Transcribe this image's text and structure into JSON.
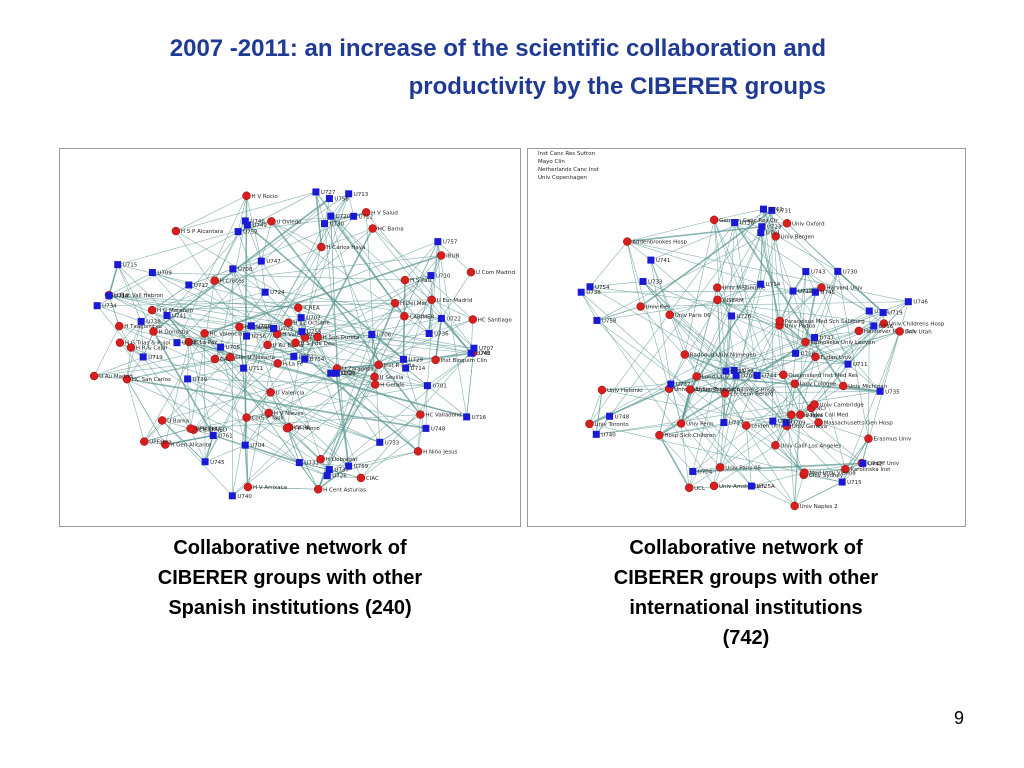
{
  "title": {
    "line1": "2007 -2011: an increase of the scientific collaboration and",
    "line2": "productivity by the  CIBERER groups"
  },
  "colors": {
    "title": "#1f3a93",
    "institution_node": "#d91e1e",
    "group_node": "#1a1ad6",
    "edge": "#5f9a94"
  },
  "networks": [
    {
      "caption": "Collaborative network of CIBERER groups with other Spanish institutions (240)",
      "caption_lines": [
        "Collaborative network of",
        "CIBERER groups with other",
        "Spanish institutions (240)"
      ],
      "institution_nodes": [
        "Inst R Sofia",
        "H J Canalejo",
        "U Sevilla",
        "H Txagorritxu",
        "CIBERNED",
        "HC Valladolid",
        "H La Fe",
        "H Gen Alicante",
        "CABIMER",
        "U Au Barna",
        "H Cruces",
        "CABD",
        "U Valencia",
        "H V Rocio",
        "H V Arrixaca",
        "ISC III",
        "H S Pau",
        "H Getafe",
        "Clin U Navarra",
        "U Oviedo",
        "H Vall Hebron",
        "UPFabra",
        "CSIC",
        "H La Paz",
        "H G Trias & Pujol",
        "HC Valencia",
        "H S J de Deu",
        "H V Nieves",
        "H Son Dureta",
        "CorS P Tauli",
        "H Del Mar",
        "H 12 Octubre",
        "H P Hierro",
        "HC Barna",
        "H Niño Jesus",
        "H R & Cajal",
        "HC Santiago",
        "ICREA",
        "H G Marañon",
        "H S P Alcantara",
        "HC San Carlos",
        "UPV EHU",
        "H Donostia",
        "U Barna",
        "H V Salud",
        "U Au Madrid",
        "H Mat Vall Hebron",
        "H Cent Asturias",
        "U Eur Madrid",
        "CNB",
        "IBUB",
        "U Zaragoza",
        "CIAC",
        "H Carlos Haya",
        "Inst Bioquim Clin",
        "H Llobregat",
        "U Com Madrid"
      ],
      "group_nodes": [
        "U738",
        "U747",
        "U736",
        "U707",
        "U732",
        "U754",
        "U704",
        "U702",
        "U755",
        "U712",
        "U733",
        "U745",
        "U734",
        "U729",
        "U728",
        "U722",
        "U741",
        "U719",
        "U709",
        "U725A",
        "U726",
        "U705",
        "U711",
        "U703",
        "U720",
        "U716",
        "U717",
        "U742",
        "U752",
        "U757",
        "U709",
        "U715",
        "U701",
        "U710",
        "U714",
        "U737",
        "U724",
        "U706",
        "U727",
        "U748",
        "U759",
        "U723",
        "U746",
        "U731",
        "U756",
        "U708",
        "U761",
        "U749",
        "U713",
        "U740",
        "U718",
        "U758",
        "U739",
        "U730"
      ]
    },
    {
      "caption": "Collaborative network of CIBERER groups with other international institutions (742)",
      "caption_lines": [
        "Collaborative network of",
        "CIBERER groups with other",
        "international institutions",
        "(742)"
      ],
      "legend_lines": [
        "Inst Canc Res Sutton",
        "Mayo Clin",
        "Netherlands Canc Inst",
        "Univ Copenhagen"
      ],
      "institution_nodes": [
        "Univ Kiel",
        "Cardiff Univ",
        "Univ Toronto",
        "Lund Univ",
        "Univ Naples 2",
        "Harvard Univ",
        "Massachusetts Gen Hosp",
        "Univ Penn",
        "Univ Paris 06",
        "Addenbrookes Hosp",
        "Univ Iowa",
        "Univ Helsinki",
        "Queensland Inst Med Res",
        "Univ Bergen",
        "Univ Geneva",
        "NCI",
        "Ctr Leon Berard",
        "UCL",
        "Univ Cologne",
        "Univ Paris 05",
        "Univ Sydney",
        "Univ Oxford",
        "Radboud Univ Nijmegen",
        "Univ Childrens Hosp",
        "Leiden Univ",
        "Karolinska Inst",
        "Univ Calif San Francisco",
        "INSERM",
        "Hosp Sick Children",
        "Med Univ Vienna",
        "Aghia Sophia Childrens Hosp",
        "German Canc Res Ctr",
        "Univ Melbourne",
        "Hannover Med Sch",
        "Univ Padua",
        "Univ Michigan",
        "Univ Utah",
        "Katholieke Univ Leuven",
        "Paracelsus Med Sch Salzburg",
        "Univ Amsterdam",
        "Univ Cambridge",
        "Erasmus Univ",
        "Fudan Univ",
        "Univ Calif Los Angeles",
        "Baylor Coll Med"
      ],
      "group_nodes": [
        "U754",
        "U730",
        "U739",
        "U748",
        "U721",
        "U738",
        "U709",
        "U715",
        "U743",
        "U736",
        "U725A",
        "U704",
        "U714",
        "U731",
        "U735",
        "U726",
        "U741",
        "U740",
        "U723",
        "U758",
        "U705",
        "U733",
        "U701",
        "U729",
        "U718",
        "U761",
        "U716",
        "U737",
        "U745",
        "U744",
        "U752",
        "U742",
        "U711",
        "U746",
        "U719",
        "U732",
        "U747",
        "U710"
      ]
    }
  ],
  "page_number": "9"
}
